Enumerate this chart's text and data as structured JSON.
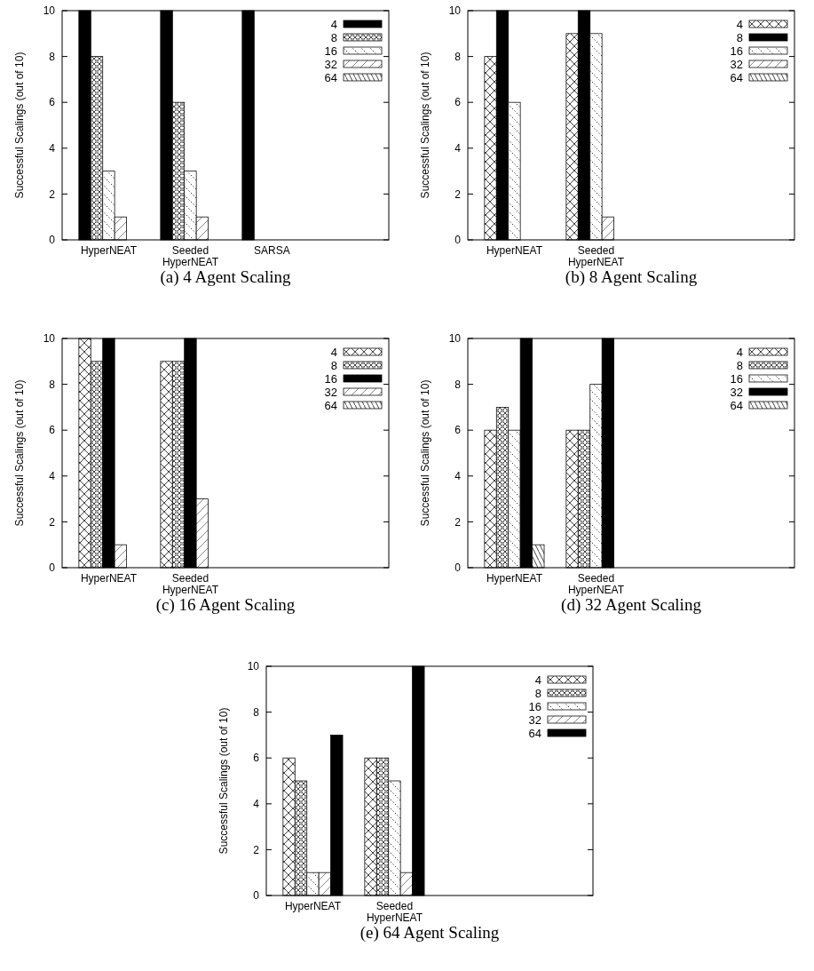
{
  "chart_data": [
    {
      "type": "bar",
      "title": "(a) 4 Agent Scaling",
      "ylabel": "Successful Scalings (out of 10)",
      "categories": [
        "HyperNEAT",
        "Seeded HyperNEAT",
        "SARSA"
      ],
      "ylim": [
        0,
        10
      ],
      "yticks": [
        0,
        2,
        4,
        6,
        8,
        10
      ],
      "legend": "top right",
      "series": [
        {
          "name": "4",
          "color": "#000000",
          "values": [
            10,
            10,
            10
          ]
        },
        {
          "name": "8",
          "color": "#111111",
          "values": [
            8,
            6,
            0
          ]
        },
        {
          "name": "16",
          "color": "#111111",
          "values": [
            3,
            3,
            0
          ]
        },
        {
          "name": "32",
          "color": "#111111",
          "values": [
            1,
            1,
            0
          ]
        },
        {
          "name": "64",
          "color": "#111111",
          "values": [
            0,
            0,
            0
          ]
        }
      ]
    },
    {
      "type": "bar",
      "title": "(b) 8 Agent Scaling",
      "ylabel": "Successful Scalings (out of 10)",
      "categories": [
        "HyperNEAT",
        "Seeded HyperNEAT"
      ],
      "ylim": [
        0,
        10
      ],
      "yticks": [
        0,
        2,
        4,
        6,
        8,
        10
      ],
      "legend": "top right",
      "series": [
        {
          "name": "4",
          "color": "#111111",
          "values": [
            8,
            9
          ]
        },
        {
          "name": "8",
          "color": "#000000",
          "values": [
            10,
            10
          ]
        },
        {
          "name": "16",
          "color": "#111111",
          "values": [
            6,
            9
          ]
        },
        {
          "name": "32",
          "color": "#111111",
          "values": [
            0,
            1
          ]
        },
        {
          "name": "64",
          "color": "#111111",
          "values": [
            0,
            0
          ]
        }
      ]
    },
    {
      "type": "bar",
      "title": "(c) 16 Agent Scaling",
      "ylabel": "Successful Scalings (out of 10)",
      "categories": [
        "HyperNEAT",
        "Seeded HyperNEAT"
      ],
      "ylim": [
        0,
        10
      ],
      "yticks": [
        0,
        2,
        4,
        6,
        8,
        10
      ],
      "legend": "top right",
      "series": [
        {
          "name": "4",
          "color": "#111111",
          "values": [
            10,
            9
          ]
        },
        {
          "name": "8",
          "color": "#111111",
          "values": [
            9,
            9
          ]
        },
        {
          "name": "16",
          "color": "#000000",
          "values": [
            10,
            10
          ]
        },
        {
          "name": "32",
          "color": "#111111",
          "values": [
            1,
            3
          ]
        },
        {
          "name": "64",
          "color": "#111111",
          "values": [
            0,
            0
          ]
        }
      ]
    },
    {
      "type": "bar",
      "title": "(d) 32 Agent Scaling",
      "ylabel": "Successful Scalings (out of 10)",
      "categories": [
        "HyperNEAT",
        "Seeded HyperNEAT"
      ],
      "ylim": [
        0,
        10
      ],
      "yticks": [
        0,
        2,
        4,
        6,
        8,
        10
      ],
      "legend": "top right",
      "series": [
        {
          "name": "4",
          "color": "#111111",
          "values": [
            6,
            6
          ]
        },
        {
          "name": "8",
          "color": "#111111",
          "values": [
            7,
            6
          ]
        },
        {
          "name": "16",
          "color": "#111111",
          "values": [
            6,
            8
          ]
        },
        {
          "name": "32",
          "color": "#000000",
          "values": [
            10,
            10
          ]
        },
        {
          "name": "64",
          "color": "#111111",
          "values": [
            1,
            0
          ]
        }
      ]
    },
    {
      "type": "bar",
      "title": "(e) 64 Agent Scaling",
      "ylabel": "Successful Scalings (out of 10)",
      "categories": [
        "HyperNEAT",
        "Seeded HyperNEAT"
      ],
      "ylim": [
        0,
        10
      ],
      "yticks": [
        0,
        2,
        4,
        6,
        8,
        10
      ],
      "legend": "top right",
      "series": [
        {
          "name": "4",
          "color": "#111111",
          "values": [
            6,
            6
          ]
        },
        {
          "name": "8",
          "color": "#111111",
          "values": [
            5,
            6
          ]
        },
        {
          "name": "16",
          "color": "#111111",
          "values": [
            1,
            5
          ]
        },
        {
          "name": "32",
          "color": "#111111",
          "values": [
            1,
            1
          ]
        },
        {
          "name": "64",
          "color": "#000000",
          "values": [
            7,
            10
          ]
        }
      ]
    }
  ]
}
